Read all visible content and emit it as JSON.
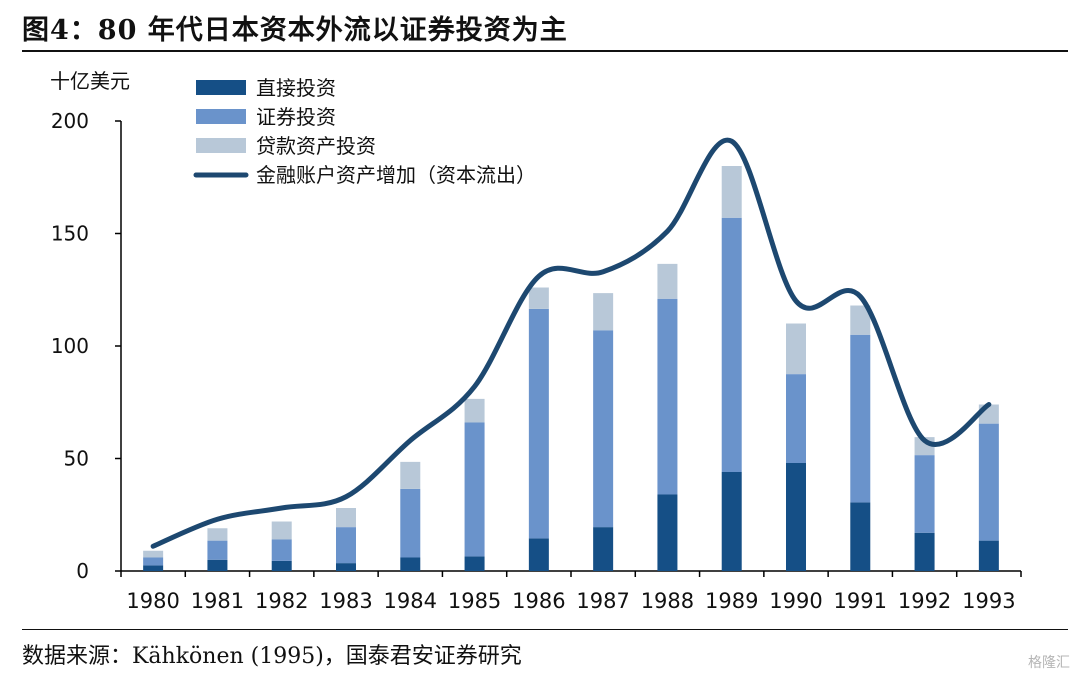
{
  "header": {
    "title": "图4：80 年代日本资本外流以证券投资为主"
  },
  "footer": {
    "source": "数据来源：Kähkönen (1995)，国泰君安证券研究",
    "watermark": "格隆汇"
  },
  "chart_data": {
    "type": "bar",
    "stacked": true,
    "ylabel": "十亿美元",
    "ylim": [
      0,
      200
    ],
    "yticks": [
      0,
      50,
      100,
      150,
      200
    ],
    "categories": [
      "1980",
      "1981",
      "1982",
      "1983",
      "1984",
      "1985",
      "1986",
      "1987",
      "1988",
      "1989",
      "1990",
      "1991",
      "1992",
      "1993"
    ],
    "series": [
      {
        "name": "直接投资",
        "type": "bar",
        "color": "#154f86",
        "values": [
          2.5,
          5,
          4.5,
          3.5,
          6,
          6.5,
          14.5,
          19.5,
          34,
          44,
          48,
          30.5,
          17,
          13.5
        ]
      },
      {
        "name": "证券投资",
        "type": "bar",
        "color": "#6a93cb",
        "values": [
          3.5,
          8.5,
          9.5,
          16,
          30.5,
          59.5,
          102,
          87.5,
          87,
          113,
          39.5,
          74.5,
          34.5,
          52
        ]
      },
      {
        "name": "贷款资产投资",
        "type": "bar",
        "color": "#b8c8d8",
        "values": [
          3,
          5.5,
          8,
          8.5,
          12,
          10.5,
          9.5,
          16.5,
          15.5,
          23,
          22.5,
          13,
          8,
          8.5
        ]
      },
      {
        "name": "金融账户资产增加（资本流出）",
        "type": "line",
        "color": "#1d4870",
        "values": [
          11,
          23,
          28,
          33,
          58,
          82,
          131,
          133,
          151,
          191,
          120,
          122,
          58,
          74
        ]
      }
    ],
    "legend": "top-left",
    "grid": false
  }
}
